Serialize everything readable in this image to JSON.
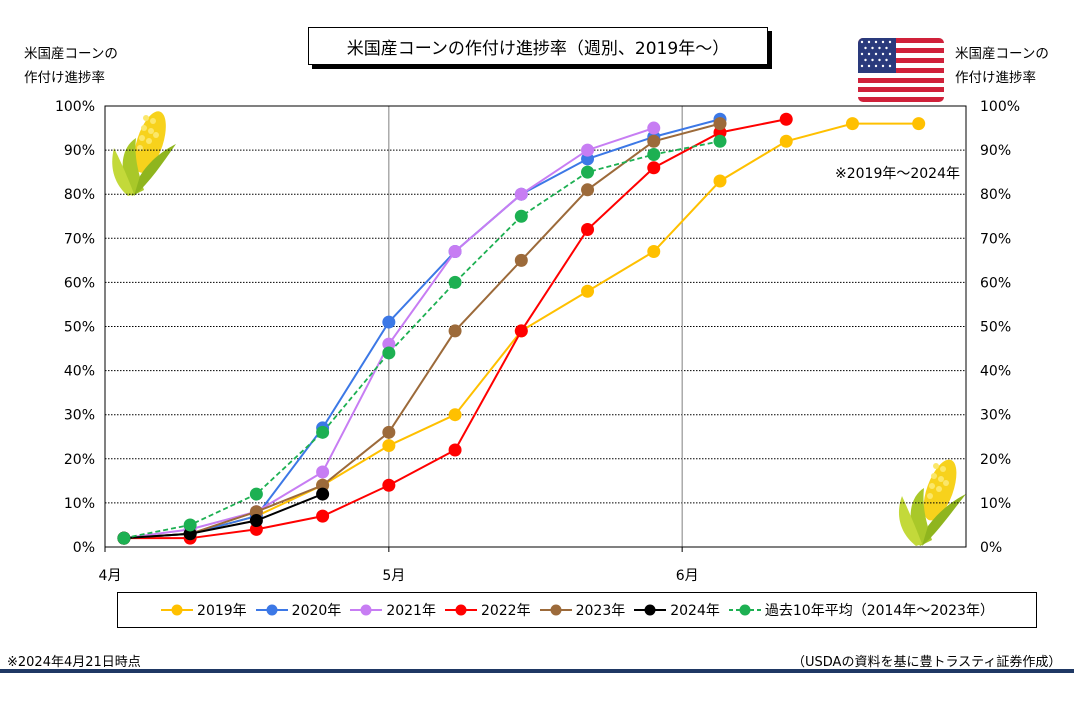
{
  "title": "米国産コーンの作付け進捗率（週別、2019年～）",
  "axis_label_left_line1": "米国産コーンの",
  "axis_label_left_line2": "作付け進捗率",
  "axis_label_right_line1": "米国産コーンの",
  "axis_label_right_line2": "作付け進捗率",
  "note_range": "※2019年～2024年",
  "footnote_date": "※2024年4月21日時点",
  "footnote_source": "（USDAの資料を基に豊トラスティ証券作成）",
  "icons": {
    "left": "corn-icon",
    "right": "corn-icon",
    "flag": "us-flag-icon"
  },
  "chart_data": {
    "type": "line",
    "x_ticks": [
      "4月",
      "5月",
      "6月"
    ],
    "y_ticks": [
      "0%",
      "10%",
      "20%",
      "30%",
      "40%",
      "50%",
      "60%",
      "70%",
      "80%",
      "90%",
      "100%"
    ],
    "ylim": [
      0,
      100
    ],
    "xlim_days": [
      0,
      91
    ],
    "grid": true,
    "legend_position": "bottom",
    "series": [
      {
        "name": "2019年",
        "color": "#FFC000",
        "dash": false,
        "x": [
          2,
          9,
          16,
          23,
          30,
          37,
          44,
          51,
          58,
          65,
          72,
          79,
          86
        ],
        "y": [
          2,
          3,
          7,
          14,
          23,
          30,
          49,
          58,
          67,
          83,
          92,
          96,
          96
        ],
        "_note": ""
      },
      {
        "name": "2020年",
        "color": "#3C78E6",
        "dash": false,
        "x": [
          2,
          9,
          16,
          23,
          30,
          37,
          44,
          51,
          58,
          65
        ],
        "y": [
          2,
          3,
          7,
          27,
          51,
          67,
          80,
          88,
          93,
          97
        ]
      },
      {
        "name": "2021年",
        "color": "#C77DF3",
        "dash": false,
        "x": [
          2,
          9,
          16,
          23,
          30,
          37,
          44,
          51,
          58
        ],
        "y": [
          2,
          4,
          8,
          17,
          46,
          67,
          80,
          90,
          95
        ]
      },
      {
        "name": "2022年",
        "color": "#FF0000",
        "dash": false,
        "x": [
          2,
          9,
          16,
          23,
          30,
          37,
          44,
          51,
          58,
          65,
          72
        ],
        "y": [
          2,
          2,
          4,
          7,
          14,
          22,
          49,
          72,
          86,
          94,
          97
        ]
      },
      {
        "name": "2023年",
        "color": "#9C6A3A",
        "dash": false,
        "x": [
          2,
          9,
          16,
          23,
          30,
          37,
          44,
          51,
          58,
          65
        ],
        "y": [
          2,
          3,
          8,
          14,
          26,
          49,
          65,
          81,
          92,
          96
        ]
      },
      {
        "name": "2024年",
        "color": "#000000",
        "dash": false,
        "x": [
          2,
          9,
          16,
          23
        ],
        "y": [
          2,
          3,
          6,
          12
        ]
      },
      {
        "name": "過去10年平均（2014年～2023年）",
        "color": "#1DB052",
        "dash": true,
        "x": [
          2,
          9,
          16,
          23,
          30,
          37,
          44,
          51,
          58,
          65
        ],
        "y": [
          2,
          5,
          12,
          26,
          44,
          60,
          75,
          85,
          89,
          92
        ]
      }
    ]
  }
}
